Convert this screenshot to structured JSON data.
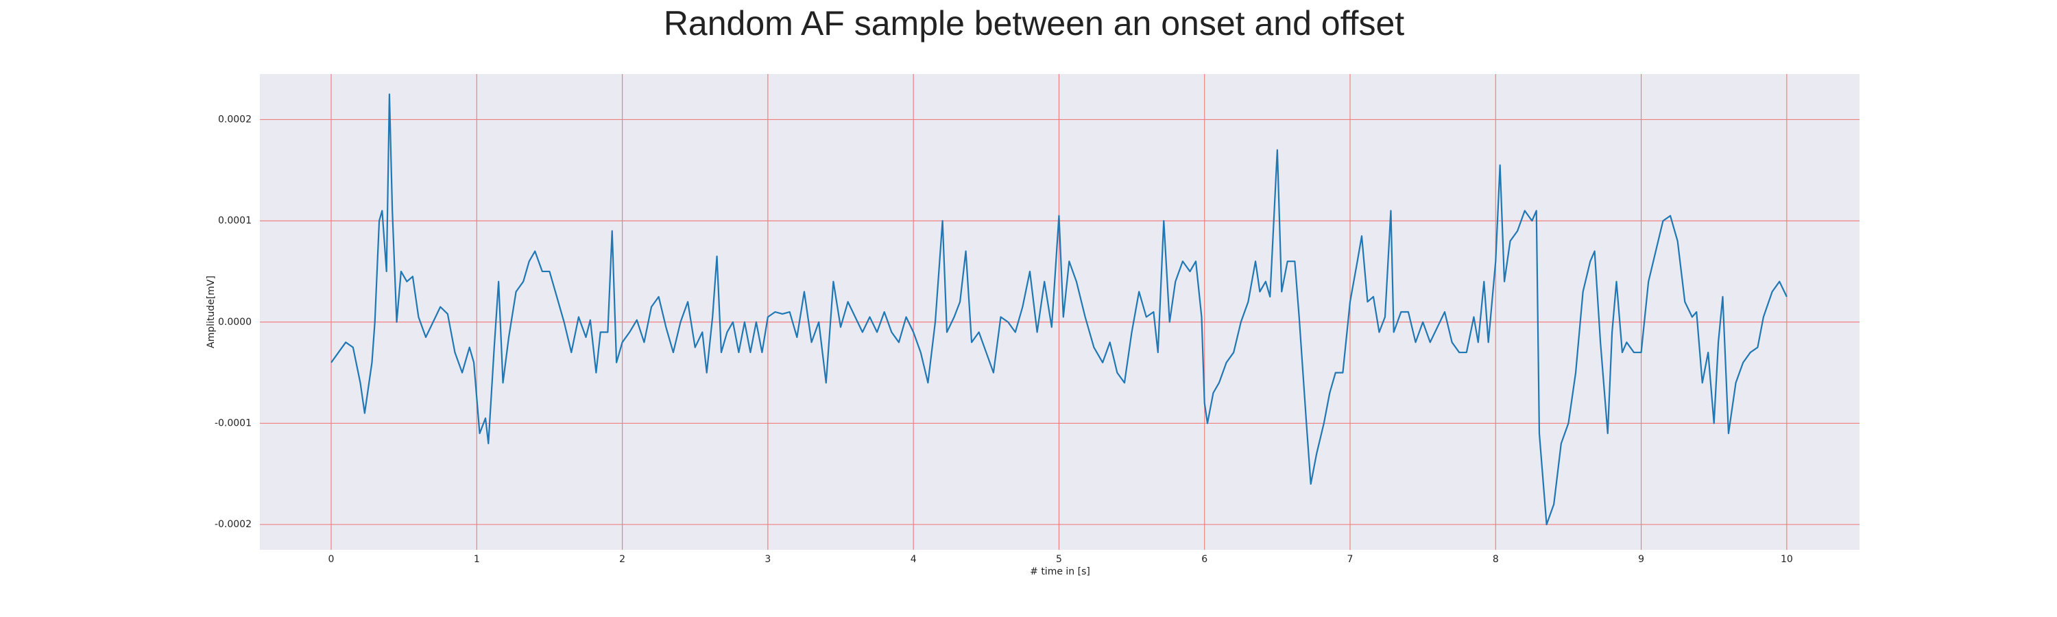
{
  "chart_data": {
    "type": "line",
    "title": "Random AF sample between an onset and offset",
    "xlabel": "# time in [s]",
    "ylabel": "Amplitude[mV]",
    "color": "#1f77b4",
    "grid": true,
    "grid_color": "#f08080",
    "background": "#eaeaf2",
    "xlim": [
      -0.49,
      10.5
    ],
    "ylim": [
      -0.000225,
      0.000245
    ],
    "xticks": [
      0,
      1,
      2,
      3,
      4,
      5,
      6,
      7,
      8,
      9,
      10
    ],
    "yticks": [
      -0.0002,
      -0.0001,
      {
        "value": 0,
        "label": "0.0000"
      },
      0.0001,
      0.0002
    ],
    "x": [
      0,
      0.05,
      0.1,
      0.15,
      0.2,
      0.23,
      0.28,
      0.3,
      0.33,
      0.35,
      0.38,
      0.4,
      0.42,
      0.45,
      0.48,
      0.52,
      0.56,
      0.6,
      0.65,
      0.7,
      0.75,
      0.8,
      0.85,
      0.9,
      0.95,
      0.98,
      1.02,
      1.06,
      1.08,
      1.12,
      1.15,
      1.18,
      1.22,
      1.27,
      1.32,
      1.36,
      1.4,
      1.45,
      1.5,
      1.55,
      1.6,
      1.65,
      1.7,
      1.75,
      1.78,
      1.82,
      1.85,
      1.9,
      1.93,
      1.96,
      2.0,
      2.05,
      2.1,
      2.15,
      2.2,
      2.25,
      2.3,
      2.35,
      2.4,
      2.45,
      2.5,
      2.55,
      2.58,
      2.62,
      2.65,
      2.68,
      2.72,
      2.76,
      2.8,
      2.84,
      2.88,
      2.92,
      2.96,
      3.0,
      3.05,
      3.1,
      3.15,
      3.2,
      3.25,
      3.3,
      3.35,
      3.4,
      3.45,
      3.5,
      3.55,
      3.6,
      3.65,
      3.7,
      3.75,
      3.8,
      3.85,
      3.9,
      3.95,
      4.0,
      4.05,
      4.1,
      4.15,
      4.2,
      4.23,
      4.28,
      4.32,
      4.36,
      4.4,
      4.45,
      4.5,
      4.55,
      4.6,
      4.65,
      4.7,
      4.75,
      4.8,
      4.85,
      4.9,
      4.95,
      5.0,
      5.03,
      5.07,
      5.12,
      5.18,
      5.24,
      5.3,
      5.35,
      5.4,
      5.45,
      5.5,
      5.55,
      5.6,
      5.65,
      5.68,
      5.72,
      5.76,
      5.8,
      5.85,
      5.9,
      5.94,
      5.98,
      6.0,
      6.02,
      6.06,
      6.1,
      6.15,
      6.2,
      6.25,
      6.3,
      6.35,
      6.38,
      6.42,
      6.45,
      6.5,
      6.53,
      6.57,
      6.62,
      6.65,
      6.7,
      6.73,
      6.77,
      6.82,
      6.86,
      6.9,
      6.95,
      7.0,
      7.05,
      7.08,
      7.12,
      7.16,
      7.2,
      7.24,
      7.28,
      7.3,
      7.35,
      7.4,
      7.45,
      7.5,
      7.55,
      7.6,
      7.65,
      7.7,
      7.75,
      7.8,
      7.85,
      7.88,
      7.92,
      7.95,
      8.0,
      8.03,
      8.06,
      8.1,
      8.15,
      8.2,
      8.25,
      8.28,
      8.3,
      8.35,
      8.4,
      8.45,
      8.5,
      8.55,
      8.6,
      8.65,
      8.68,
      8.72,
      8.77,
      8.8,
      8.83,
      8.87,
      8.9,
      8.95,
      9.0,
      9.05,
      9.1,
      9.15,
      9.2,
      9.25,
      9.3,
      9.35,
      9.38,
      9.42,
      9.46,
      9.5,
      9.53,
      9.56,
      9.6,
      9.65,
      9.7,
      9.75,
      9.8,
      9.84,
      9.9,
      9.95,
      10.0
    ],
    "values": [
      -4e-05,
      -3e-05,
      -2e-05,
      -2.5e-05,
      -6e-05,
      -9e-05,
      -4e-05,
      0,
      0.0001,
      0.00011,
      5e-05,
      0.000225,
      0.00011,
      0,
      5e-05,
      4e-05,
      4.5e-05,
      5e-06,
      -1.5e-05,
      0,
      1.5e-05,
      8e-06,
      -3e-05,
      -5e-05,
      -2.5e-05,
      -4e-05,
      -0.00011,
      -9.5e-05,
      -0.00012,
      -2.5e-05,
      4e-05,
      -6e-05,
      -1.5e-05,
      3e-05,
      4e-05,
      6e-05,
      7e-05,
      5e-05,
      5e-05,
      2.5e-05,
      0,
      -3e-05,
      5e-06,
      -1.5e-05,
      2e-06,
      -5e-05,
      -1e-05,
      -1e-05,
      9e-05,
      -4e-05,
      -2e-05,
      -1e-05,
      2e-06,
      -2e-05,
      1.5e-05,
      2.5e-05,
      -5e-06,
      -3e-05,
      0,
      2e-05,
      -2.5e-05,
      -1e-05,
      -5e-05,
      5e-06,
      6.5e-05,
      -3e-05,
      -1e-05,
      0,
      -3e-05,
      0,
      -3e-05,
      0,
      -3e-05,
      5e-06,
      1e-05,
      8e-06,
      1e-05,
      -1.5e-05,
      3e-05,
      -2e-05,
      0,
      -6e-05,
      4e-05,
      -5e-06,
      2e-05,
      5e-06,
      -1e-05,
      5e-06,
      -1e-05,
      1e-05,
      -1e-05,
      -2e-05,
      5e-06,
      -1e-05,
      -3e-05,
      -6e-05,
      0,
      0.0001,
      -1e-05,
      5e-06,
      2e-05,
      7e-05,
      -2e-05,
      -1e-05,
      -3e-05,
      -5e-05,
      5e-06,
      0,
      -1e-05,
      1.5e-05,
      5e-05,
      -1e-05,
      4e-05,
      -5e-06,
      0.000105,
      5e-06,
      6e-05,
      4e-05,
      5e-06,
      -2.5e-05,
      -4e-05,
      -2e-05,
      -5e-05,
      -6e-05,
      -1e-05,
      3e-05,
      5e-06,
      1e-05,
      -3e-05,
      0.0001,
      0,
      4e-05,
      6e-05,
      5e-05,
      6e-05,
      5e-06,
      -8e-05,
      -0.0001,
      -7e-05,
      -6e-05,
      -4e-05,
      -3e-05,
      0,
      2e-05,
      6e-05,
      3e-05,
      4e-05,
      2.5e-05,
      0.00017,
      3e-05,
      6e-05,
      6e-05,
      5e-06,
      -0.0001,
      -0.00016,
      -0.00013,
      -0.0001,
      -7e-05,
      -5e-05,
      -5e-05,
      2e-05,
      6e-05,
      8.5e-05,
      2e-05,
      2.5e-05,
      -1e-05,
      5e-06,
      0.00011,
      -1e-05,
      1e-05,
      1e-05,
      -2e-05,
      0,
      -2e-05,
      -5e-06,
      1e-05,
      -2e-05,
      -3e-05,
      -3e-05,
      5e-06,
      -2e-05,
      4e-05,
      -2e-05,
      6e-05,
      0.000155,
      4e-05,
      8e-05,
      9e-05,
      0.00011,
      0.0001,
      0.00011,
      -0.00011,
      -0.0002,
      -0.00018,
      -0.00012,
      -0.0001,
      -5e-05,
      3e-05,
      6e-05,
      7e-05,
      -2e-05,
      -0.00011,
      -1e-05,
      4e-05,
      -3e-05,
      -2e-05,
      -3e-05,
      -3e-05,
      4e-05,
      7e-05,
      0.0001,
      0.000105,
      8e-05,
      2e-05,
      5e-06,
      1e-05,
      -6e-05,
      -3e-05,
      -0.0001,
      -2e-05,
      2.5e-05,
      -0.00011,
      -6e-05,
      -4e-05,
      -3e-05,
      -2.5e-05,
      5e-06,
      3e-05,
      4e-05,
      2.5e-05
    ]
  }
}
